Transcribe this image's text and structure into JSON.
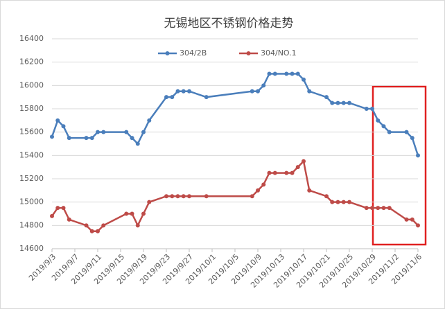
{
  "chart_data": {
    "type": "line",
    "title": "无锡地区不锈钢价格走势",
    "x": [
      "2019/9/3",
      "2019/9/4",
      "2019/9/5",
      "2019/9/6",
      "2019/9/9",
      "2019/9/10",
      "2019/9/11",
      "2019/9/12",
      "2019/9/16",
      "2019/9/17",
      "2019/9/18",
      "2019/9/19",
      "2019/9/20",
      "2019/9/23",
      "2019/9/24",
      "2019/9/25",
      "2019/9/26",
      "2019/9/27",
      "2019/9/30",
      "2019/10/8",
      "2019/10/9",
      "2019/10/10",
      "2019/10/11",
      "2019/10/12",
      "2019/10/14",
      "2019/10/15",
      "2019/10/16",
      "2019/10/17",
      "2019/10/18",
      "2019/10/21",
      "2019/10/22",
      "2019/10/23",
      "2019/10/24",
      "2019/10/25",
      "2019/10/28",
      "2019/10/29",
      "2019/10/30",
      "2019/10/31",
      "2019/11/1",
      "2019/11/4",
      "2019/11/5",
      "2019/11/6"
    ],
    "series": [
      {
        "name": "304/2B",
        "color": "#4a7ebb",
        "values": [
          15560,
          15700,
          15650,
          15550,
          15550,
          15550,
          15600,
          15600,
          15600,
          15550,
          15500,
          15600,
          15700,
          15900,
          15900,
          15950,
          15950,
          15950,
          15900,
          15950,
          15950,
          16000,
          16100,
          16100,
          16100,
          16100,
          16100,
          16050,
          15950,
          15900,
          15850,
          15850,
          15850,
          15850,
          15800,
          15800,
          15700,
          15650,
          15600,
          15600,
          15550,
          15400
        ]
      },
      {
        "name": "304/NO.1",
        "color": "#be4b48",
        "values": [
          14880,
          14950,
          14950,
          14850,
          14800,
          14750,
          14750,
          14800,
          14900,
          14900,
          14800,
          14900,
          15000,
          15050,
          15050,
          15050,
          15050,
          15050,
          15050,
          15050,
          15100,
          15150,
          15250,
          15250,
          15250,
          15250,
          15300,
          15350,
          15100,
          15050,
          15000,
          15000,
          15000,
          15000,
          14950,
          14950,
          14950,
          14950,
          14950,
          14850,
          14850,
          14800
        ]
      }
    ],
    "xlim": [
      "2019/9/3",
      "2019/11/6"
    ],
    "xticks": [
      "2019/9/3",
      "2019/9/7",
      "2019/9/11",
      "2019/9/15",
      "2019/9/19",
      "2019/9/23",
      "2019/9/27",
      "2019/10/1",
      "2019/10/5",
      "2019/10/9",
      "2019/10/13",
      "2019/10/17",
      "2019/10/21",
      "2019/10/25",
      "2019/10/29",
      "2019/11/2",
      "2019/11/6"
    ],
    "ylim": [
      14600,
      16400
    ],
    "yticks": [
      14600,
      14800,
      15000,
      15200,
      15400,
      15600,
      15800,
      16000,
      16200,
      16400
    ],
    "grid": true,
    "legend": "top"
  }
}
